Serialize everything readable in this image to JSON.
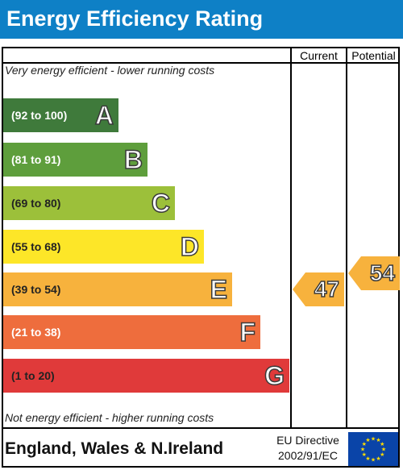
{
  "title": "Energy Efficiency Rating",
  "columns": {
    "current": "Current",
    "potential": "Potential"
  },
  "captions": {
    "top": "Very energy efficient - lower running costs",
    "bottom": "Not energy efficient - higher running costs"
  },
  "bands": [
    {
      "range": "(92 to 100)",
      "letter": "A",
      "color": "#3f7a3b"
    },
    {
      "range": "(81 to 91)",
      "letter": "B",
      "color": "#5e9e3c"
    },
    {
      "range": "(69 to 80)",
      "letter": "C",
      "color": "#9cc03a"
    },
    {
      "range": "(55 to 68)",
      "letter": "D",
      "color": "#fde628"
    },
    {
      "range": "(39 to 54)",
      "letter": "E",
      "color": "#f7b23d"
    },
    {
      "range": "(21 to 38)",
      "letter": "F",
      "color": "#ee6d3d"
    },
    {
      "range": "(1 to 20)",
      "letter": "G",
      "color": "#e03a3a"
    }
  ],
  "ratings": {
    "current": {
      "value": "47",
      "band": "E",
      "color": "#f7b23d"
    },
    "potential": {
      "value": "54",
      "band": "E",
      "color": "#f7b23d"
    }
  },
  "footer": {
    "country": "England, Wales & N.Ireland",
    "directive_line1": "EU Directive",
    "directive_line2": "2002/91/EC",
    "flag_icon": "eu-flag-icon"
  }
}
